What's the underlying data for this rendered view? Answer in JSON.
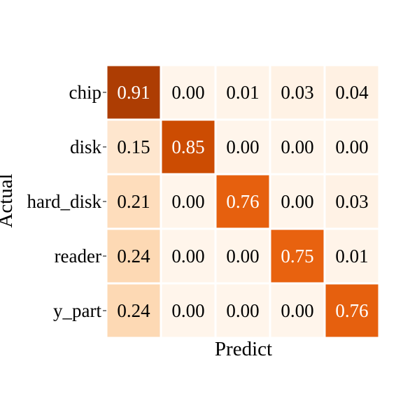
{
  "chart_data": {
    "type": "heatmap",
    "title": "",
    "xlabel": "Predict",
    "ylabel": "Actual",
    "rows": [
      "chip",
      "disk",
      "hard_disk",
      "reader",
      "y_part"
    ],
    "columns": [
      "",
      "",
      "",
      "",
      ""
    ],
    "values": [
      [
        0.91,
        0.0,
        0.01,
        0.03,
        0.04
      ],
      [
        0.15,
        0.85,
        0.0,
        0.0,
        0.0
      ],
      [
        0.21,
        0.0,
        0.76,
        0.0,
        0.03
      ],
      [
        0.24,
        0.0,
        0.0,
        0.75,
        0.01
      ],
      [
        0.24,
        0.0,
        0.0,
        0.0,
        0.76
      ]
    ],
    "value_format": "0.00",
    "color_range": [
      0,
      1
    ],
    "colormap": "Oranges",
    "grid": false,
    "legend": "none"
  }
}
